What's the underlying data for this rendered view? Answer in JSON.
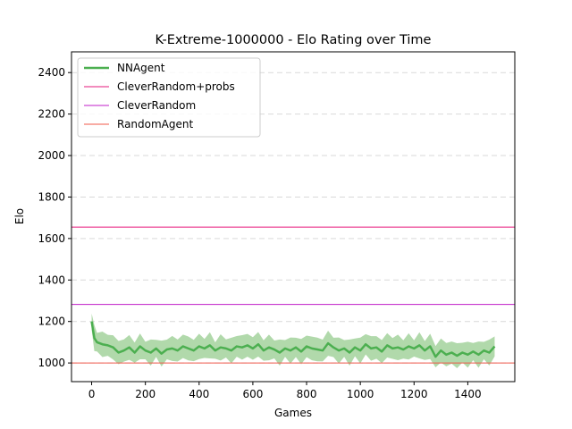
{
  "chart_data": {
    "type": "line",
    "title": "K-Extreme-1000000 - Elo Rating over Time",
    "xlabel": "Games",
    "ylabel": "Elo",
    "xlim": [
      -75,
      1575
    ],
    "ylim": [
      910,
      2500
    ],
    "xticks": [
      0,
      200,
      400,
      600,
      800,
      1000,
      1200,
      1400
    ],
    "xtick_labels": [
      "0",
      "200",
      "400",
      "600",
      "800",
      "1000",
      "1200",
      "1400"
    ],
    "yticks": [
      1000,
      1200,
      1400,
      1600,
      1800,
      2000,
      2200,
      2400
    ],
    "ytick_labels": [
      "1000",
      "1200",
      "1400",
      "1600",
      "1800",
      "2000",
      "2200",
      "2400"
    ],
    "grid": "y-dashed",
    "legend_position": "top-left",
    "series": [
      {
        "name": "NNAgent",
        "color": "#4caf50",
        "band_color": "#a8d5a2",
        "x": [
          0,
          10,
          20,
          40,
          60,
          80,
          100,
          120,
          140,
          160,
          180,
          200,
          220,
          240,
          260,
          280,
          300,
          320,
          340,
          360,
          380,
          400,
          420,
          440,
          460,
          480,
          500,
          520,
          540,
          560,
          580,
          600,
          620,
          640,
          660,
          680,
          700,
          720,
          740,
          760,
          780,
          800,
          820,
          840,
          860,
          880,
          900,
          920,
          940,
          960,
          980,
          1000,
          1020,
          1040,
          1060,
          1080,
          1100,
          1120,
          1140,
          1160,
          1180,
          1200,
          1220,
          1240,
          1260,
          1280,
          1300,
          1320,
          1340,
          1360,
          1380,
          1400,
          1420,
          1440,
          1460,
          1480,
          1500
        ],
        "values": [
          1200,
          1120,
          1100,
          1090,
          1085,
          1075,
          1050,
          1060,
          1075,
          1050,
          1080,
          1060,
          1050,
          1070,
          1045,
          1065,
          1070,
          1060,
          1080,
          1070,
          1060,
          1080,
          1070,
          1085,
          1060,
          1075,
          1070,
          1060,
          1080,
          1075,
          1085,
          1070,
          1090,
          1060,
          1075,
          1065,
          1050,
          1070,
          1060,
          1075,
          1055,
          1080,
          1070,
          1065,
          1060,
          1095,
          1075,
          1060,
          1070,
          1050,
          1075,
          1060,
          1090,
          1070,
          1075,
          1055,
          1085,
          1070,
          1075,
          1065,
          1080,
          1070,
          1085,
          1060,
          1080,
          1030,
          1060,
          1040,
          1050,
          1035,
          1050,
          1040,
          1055,
          1040,
          1060,
          1050,
          1080
        ],
        "band_half_width": 55
      },
      {
        "name": "CleverRandom+probs",
        "color": "#e6197b",
        "hline": 1655
      },
      {
        "name": "CleverRandom",
        "color": "#c01ec8",
        "hline": 1282
      },
      {
        "name": "RandomAgent",
        "color": "#f0584a",
        "hline": 1000
      }
    ]
  }
}
